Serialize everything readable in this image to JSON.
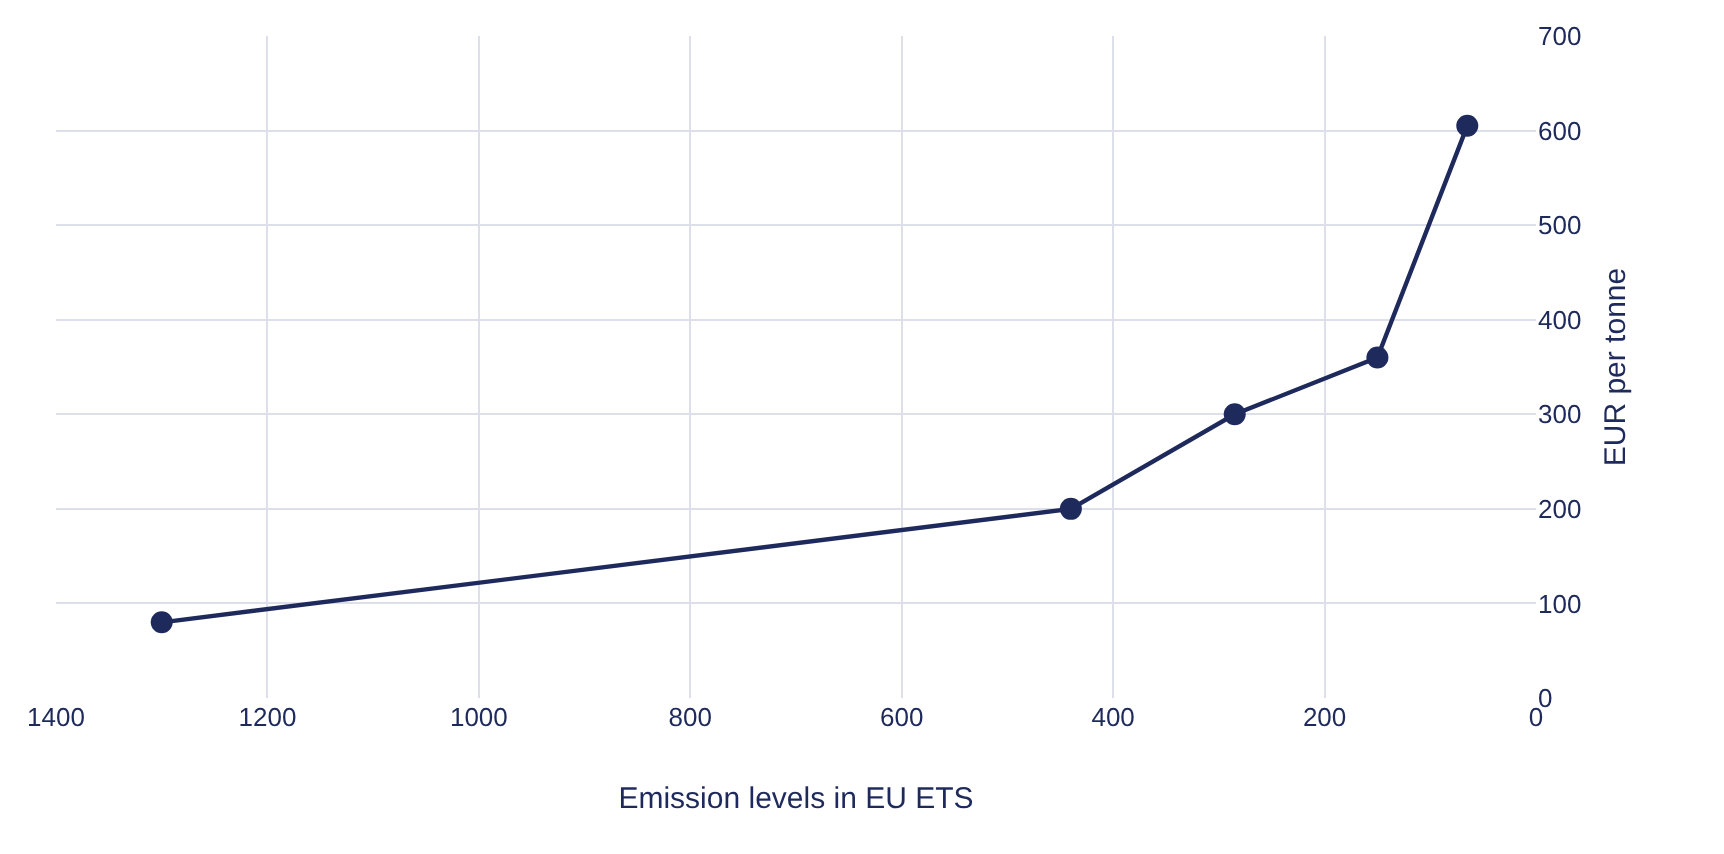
{
  "chart_data": {
    "type": "line",
    "xlabel": "Emission levels in EU ETS",
    "y2label": "EUR per tonne",
    "x": [
      1300,
      440,
      285,
      150,
      65
    ],
    "series": [
      {
        "color": "#1f2a5c",
        "values": [
          80,
          200,
          300,
          360,
          605
        ],
        "axis": "y2"
      }
    ],
    "xlim": [
      1400,
      0
    ],
    "xticks": [
      1400,
      1200,
      1000,
      800,
      600,
      400,
      200,
      0
    ],
    "y2lim": [
      0,
      700
    ],
    "y2ticks": [
      0,
      100,
      200,
      300,
      400,
      500,
      600,
      700
    ],
    "grid": true,
    "marker": "circle",
    "line_style": "solid",
    "legend": false
  }
}
